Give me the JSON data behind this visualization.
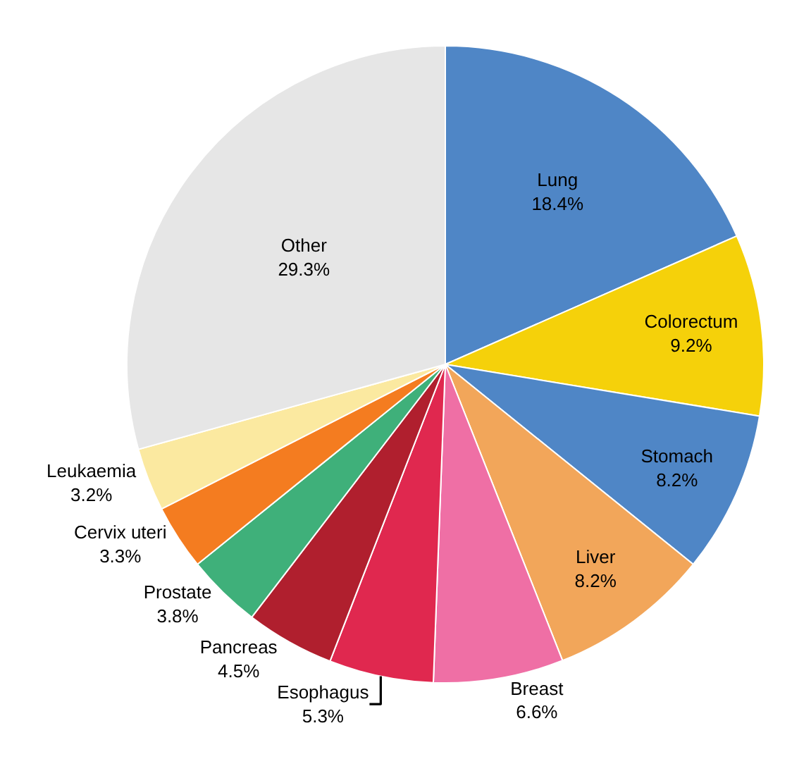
{
  "chart_data": {
    "type": "pie",
    "categories": [
      "Lung",
      "Colorectum",
      "Stomach",
      "Liver",
      "Breast",
      "Esophagus",
      "Pancreas",
      "Prostate",
      "Cervix uteri",
      "Leukaemia",
      "Other"
    ],
    "values": [
      18.4,
      9.2,
      8.2,
      8.2,
      6.6,
      5.3,
      4.5,
      3.8,
      3.3,
      3.2,
      29.3
    ],
    "value_labels": [
      "18.4%",
      "9.2%",
      "8.2%",
      "8.2%",
      "6.6%",
      "5.3%",
      "4.5%",
      "3.8%",
      "3.3%",
      "3.2%",
      "29.3%"
    ],
    "colors": [
      "#4f86c6",
      "#f5d10a",
      "#4f86c6",
      "#f2a65a",
      "#ef6fa5",
      "#e0284f",
      "#b01f2e",
      "#3fb07a",
      "#f47c20",
      "#fbe9a0",
      "#e6e6e6"
    ],
    "legend": false
  }
}
